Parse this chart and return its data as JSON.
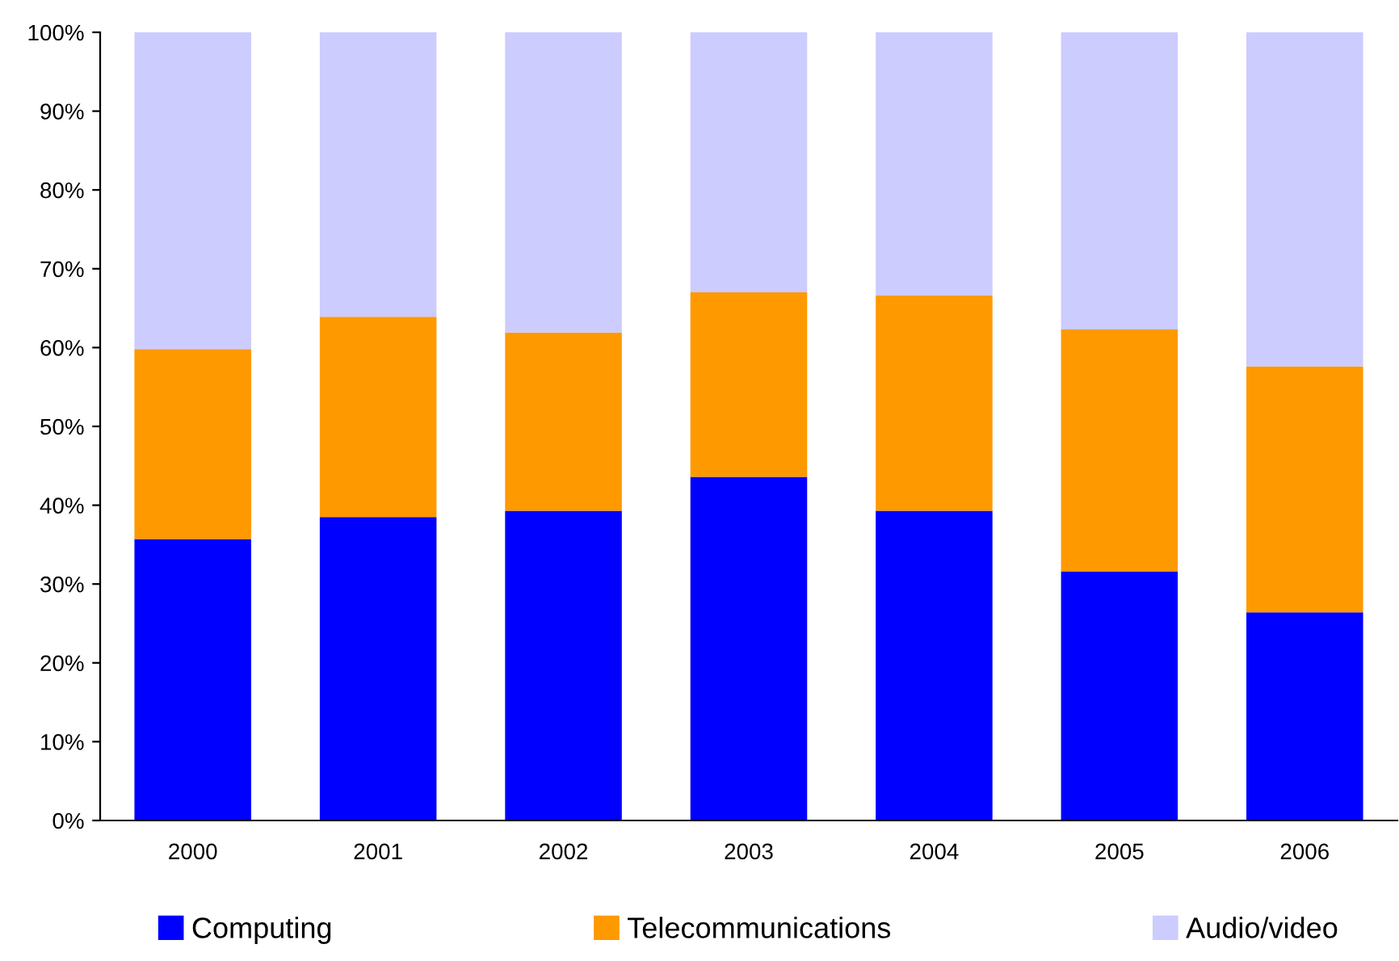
{
  "chart_data": {
    "type": "bar",
    "stacked": true,
    "categories": [
      "2000",
      "2001",
      "2002",
      "2003",
      "2004",
      "2005",
      "2006"
    ],
    "series": [
      {
        "name": "Computing",
        "color": "#0000ff",
        "values": [
          35.7,
          38.5,
          39.3,
          43.6,
          39.3,
          31.6,
          26.4
        ]
      },
      {
        "name": "Telecommunications",
        "color": "#ff9900",
        "values": [
          24.1,
          25.4,
          22.6,
          23.4,
          27.3,
          30.7,
          31.2
        ]
      },
      {
        "name": "Audio/video",
        "color": "#ccccff",
        "values": [
          40.2,
          36.1,
          38.1,
          33.0,
          33.4,
          37.7,
          42.4
        ]
      }
    ],
    "ylim": [
      0,
      100
    ],
    "yticks": [
      {
        "value": 0,
        "label": "0%"
      },
      {
        "value": 10,
        "label": "10%"
      },
      {
        "value": 20,
        "label": "20%"
      },
      {
        "value": 30,
        "label": "30%"
      },
      {
        "value": 40,
        "label": "40%"
      },
      {
        "value": 50,
        "label": "50%"
      },
      {
        "value": 60,
        "label": "60%"
      },
      {
        "value": 70,
        "label": "70%"
      },
      {
        "value": 80,
        "label": "80%"
      },
      {
        "value": 90,
        "label": "90%"
      },
      {
        "value": 100,
        "label": "100%"
      }
    ],
    "grid": false,
    "legend": "bottom"
  }
}
